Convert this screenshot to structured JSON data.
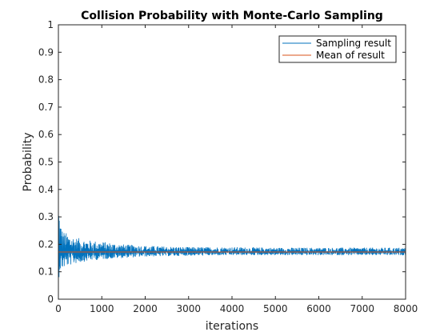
{
  "chart_data": {
    "type": "line",
    "title": "Collision Probability with Monte-Carlo Sampling",
    "xlabel": "iterations",
    "ylabel": "Probability",
    "xlim": [
      0,
      8000
    ],
    "ylim": [
      0,
      1
    ],
    "x_ticks": [
      0,
      1000,
      2000,
      3000,
      4000,
      5000,
      6000,
      7000,
      8000
    ],
    "x_tick_labels": [
      "0",
      "1000",
      "2000",
      "3000",
      "4000",
      "5000",
      "6000",
      "7000",
      "8000"
    ],
    "y_ticks": [
      0,
      0.1,
      0.2,
      0.3,
      0.4,
      0.5,
      0.6,
      0.7,
      0.8,
      0.9,
      1
    ],
    "y_tick_labels": [
      "0",
      "0.1",
      "0.2",
      "0.3",
      "0.4",
      "0.5",
      "0.6",
      "0.7",
      "0.8",
      "0.9",
      "1"
    ],
    "grid": false,
    "legend_position": "top-right",
    "series": [
      {
        "name": "Sampling result",
        "color": "#0072BD",
        "mean": 0.172,
        "envelope_x": [
          0,
          30,
          100,
          200,
          400,
          700,
          1000,
          1500,
          2000,
          3000,
          4000,
          5000,
          6000,
          7000,
          8000
        ],
        "envelope_upper": [
          0.42,
          0.3,
          0.25,
          0.24,
          0.225,
          0.215,
          0.21,
          0.2,
          0.195,
          0.19,
          0.19,
          0.188,
          0.188,
          0.188,
          0.188
        ],
        "envelope_lower": [
          0.06,
          0.1,
          0.11,
          0.12,
          0.13,
          0.14,
          0.145,
          0.15,
          0.155,
          0.158,
          0.16,
          0.16,
          0.16,
          0.16,
          0.16
        ]
      },
      {
        "name": "Mean of result",
        "color": "#D95319",
        "values": [
          0.172,
          0.172
        ],
        "x": [
          0,
          8000
        ]
      }
    ]
  }
}
